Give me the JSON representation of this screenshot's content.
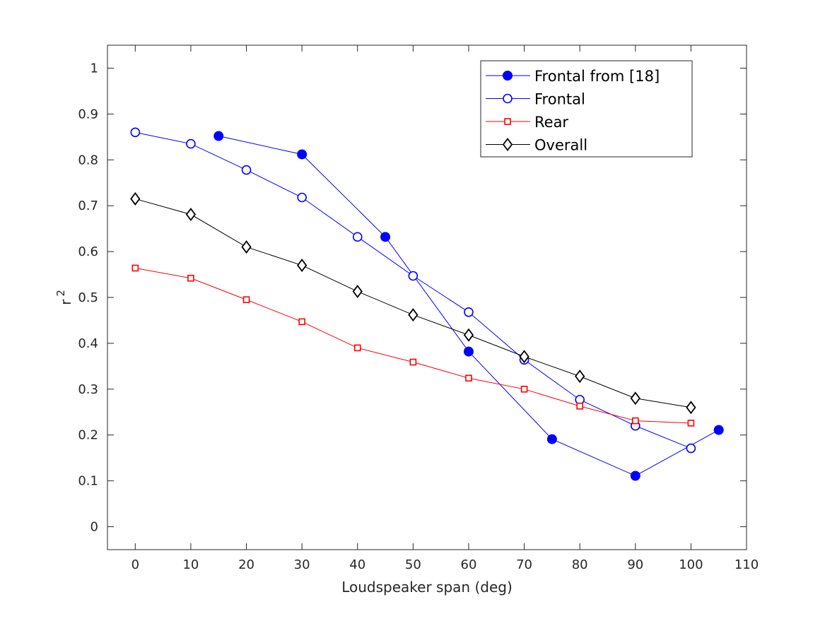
{
  "chart_data": {
    "type": "line",
    "title": "",
    "xlabel": "Loudspeaker span (deg)",
    "ylabel": "r",
    "ylabel_superscript": "2",
    "xlim": [
      -5,
      110
    ],
    "ylim": [
      -0.05,
      1.05
    ],
    "xticks": [
      0,
      10,
      20,
      30,
      40,
      50,
      60,
      70,
      80,
      90,
      100,
      110
    ],
    "yticks": [
      0,
      0.1,
      0.2,
      0.3,
      0.4,
      0.5,
      0.6,
      0.7,
      0.8,
      0.9,
      1
    ],
    "ytick_labels": [
      "0",
      "0.1",
      "0.2",
      "0.3",
      "0.4",
      "0.5",
      "0.6",
      "0.7",
      "0.8",
      "0.9",
      "1"
    ],
    "grid": false,
    "legend_position": "top-right",
    "series": [
      {
        "name": "Frontal from [18]",
        "color": "#0000ff",
        "marker": "filled-circle",
        "x": [
          15,
          30,
          45,
          60,
          75,
          90,
          105
        ],
        "y": [
          0.852,
          0.812,
          0.632,
          0.382,
          0.191,
          0.111,
          0.211
        ]
      },
      {
        "name": "Frontal",
        "color": "#0000ff",
        "marker": "open-circle",
        "x": [
          0,
          10,
          20,
          30,
          40,
          50,
          60,
          70,
          80,
          90,
          100
        ],
        "y": [
          0.86,
          0.835,
          0.778,
          0.718,
          0.632,
          0.547,
          0.468,
          0.364,
          0.277,
          0.22,
          0.171
        ]
      },
      {
        "name": "Rear",
        "color": "#ff0000",
        "marker": "open-square",
        "x": [
          0,
          10,
          20,
          30,
          40,
          50,
          60,
          70,
          80,
          90,
          100
        ],
        "y": [
          0.564,
          0.542,
          0.495,
          0.447,
          0.39,
          0.359,
          0.324,
          0.3,
          0.263,
          0.231,
          0.226
        ]
      },
      {
        "name": "Overall",
        "color": "#000000",
        "marker": "open-diamond",
        "x": [
          0,
          10,
          20,
          30,
          40,
          50,
          60,
          70,
          80,
          90,
          100
        ],
        "y": [
          0.715,
          0.681,
          0.61,
          0.57,
          0.513,
          0.462,
          0.418,
          0.371,
          0.328,
          0.28,
          0.26
        ]
      }
    ]
  }
}
